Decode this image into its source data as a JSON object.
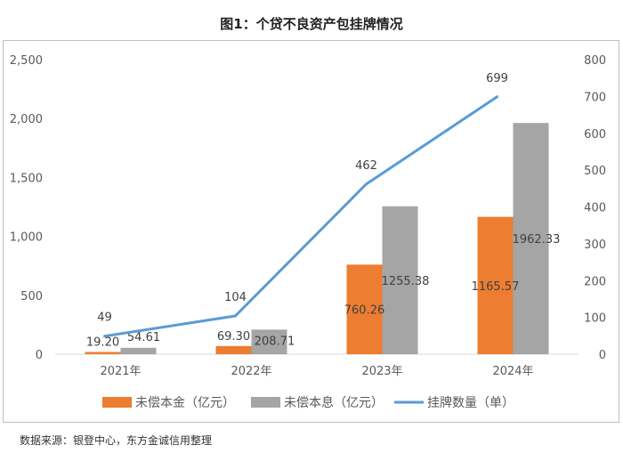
{
  "title": "图1：个贷不良资产包挂牌情况",
  "source": "数据来源：银登中心，东方金诚信用整理",
  "chart_data": {
    "type": "bar+line",
    "categories": [
      "2021年",
      "2022年",
      "2023年",
      "2024年"
    ],
    "series": [
      {
        "name": "未偿本金（亿元）",
        "type": "bar",
        "axis": "left",
        "color": "#ED7D31",
        "values": [
          19.2,
          69.3,
          760.26,
          1165.57
        ],
        "labels": [
          "19.20",
          "69.30",
          "760.26",
          "1165.57"
        ]
      },
      {
        "name": "未偿本息（亿元）",
        "type": "bar",
        "axis": "left",
        "color": "#A5A5A5",
        "values": [
          54.61,
          208.71,
          1255.38,
          1962.33
        ],
        "labels": [
          "54.61",
          "208.71",
          "1255.38",
          "1962.33"
        ]
      },
      {
        "name": "挂牌数量（单）",
        "type": "line",
        "axis": "right",
        "color": "#5B9BD5",
        "values": [
          49,
          104,
          462,
          699
        ],
        "labels": [
          "49",
          "104",
          "462",
          "699"
        ]
      }
    ],
    "y_left": {
      "min": 0,
      "max": 2500,
      "ticks": [
        0,
        500,
        1000,
        1500,
        2000,
        2500
      ],
      "tick_labels": [
        "0",
        "500",
        "1,000",
        "1,500",
        "2,000",
        "2,500"
      ]
    },
    "y_right": {
      "min": 0,
      "max": 800,
      "ticks": [
        0,
        100,
        200,
        300,
        400,
        500,
        600,
        700,
        800
      ],
      "tick_labels": [
        "0",
        "100",
        "200",
        "300",
        "400",
        "500",
        "600",
        "700",
        "800"
      ]
    },
    "grid": false,
    "legend": "bottom"
  }
}
